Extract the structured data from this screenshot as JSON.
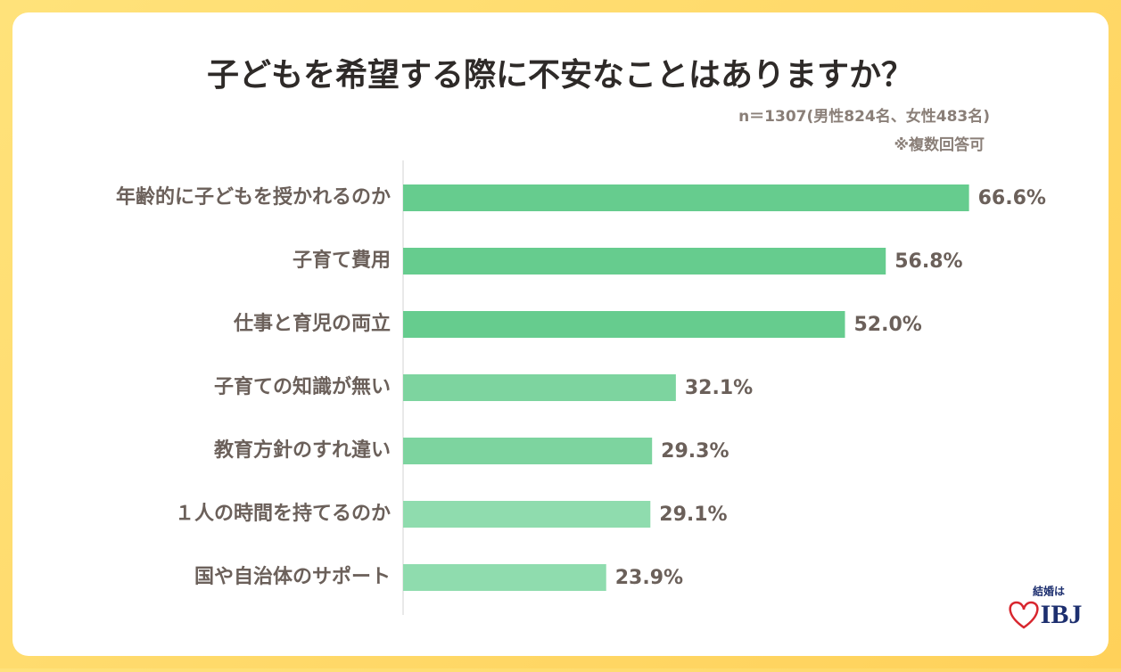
{
  "chart_data": {
    "type": "hbar",
    "title": "子どもを希望する際に不安なことはありますか？",
    "subtitle": "n＝1307(男性824名、女性483名)",
    "note": "※複数回答可",
    "categories": [
      "年齢的に子どもを授かれるのか",
      "子育て費用",
      "仕事と育児の両立",
      "子育ての知識が無い",
      "教育方針のすれ違い",
      "１人の時間を持てるのか",
      "国や自治体のサポート"
    ],
    "values": [
      66.6,
      56.8,
      52.0,
      32.1,
      29.3,
      29.1,
      23.9
    ],
    "value_labels": [
      "66.6%",
      "56.8%",
      "52.0%",
      "32.1%",
      "29.3%",
      "29.1%",
      "23.9%"
    ],
    "colors": [
      "#66cc8e",
      "#66cc8e",
      "#66cc8e",
      "#7dd49f",
      "#7dd49f",
      "#8fdcae",
      "#8fdcae"
    ],
    "xlim": [
      0,
      70
    ]
  },
  "logo": {
    "tagline": "結婚は",
    "name": "IBJ"
  }
}
